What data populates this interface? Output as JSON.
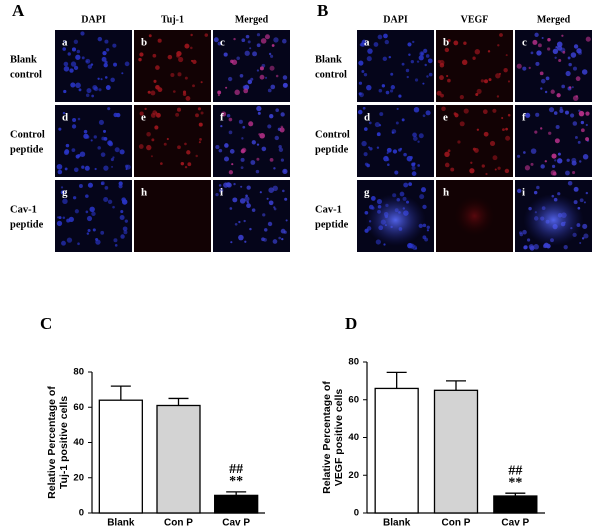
{
  "panels": [
    {
      "label": "A",
      "columns": [
        "DAPI",
        "Tuj-1",
        "Merged"
      ],
      "rows": [
        [
          "Blank",
          "control"
        ],
        [
          "Control",
          "peptide"
        ],
        [
          "Cav-1",
          "peptide"
        ]
      ],
      "cells": [
        "a",
        "b",
        "c",
        "d",
        "e",
        "f",
        "g",
        "h",
        "i"
      ]
    },
    {
      "label": "B",
      "columns": [
        "DAPI",
        "VEGF",
        "Merged"
      ],
      "rows": [
        [
          "Blank",
          "control"
        ],
        [
          "Control",
          "peptide"
        ],
        [
          "Cav-1",
          "peptide"
        ]
      ],
      "cells": [
        "a",
        "b",
        "c",
        "d",
        "e",
        "f",
        "g",
        "h",
        "i"
      ]
    }
  ],
  "chart_data": [
    {
      "type": "bar",
      "title": "C",
      "y_label": [
        "Relative Percentage of",
        "Tuj-1 positive cells"
      ],
      "categories": [
        "Blank",
        "Con P",
        "Cav P"
      ],
      "values": [
        64,
        61,
        10
      ],
      "errors": [
        8,
        4,
        2
      ],
      "colors": [
        "#ffffff",
        "#d3d3d3",
        "#000000"
      ],
      "annotations": [
        "##",
        "**"
      ],
      "ylim": [
        0,
        80
      ],
      "yticks": [
        0,
        20,
        40,
        60,
        80
      ]
    },
    {
      "type": "bar",
      "title": "D",
      "y_label": [
        "Relative Percentage of",
        "VEGF positive cells"
      ],
      "categories": [
        "Blank",
        "Con P",
        "Cav P"
      ],
      "values": [
        66,
        65,
        9
      ],
      "errors": [
        8.5,
        5,
        1.5
      ],
      "colors": [
        "#ffffff",
        "#d3d3d3",
        "#000000"
      ],
      "annotations": [
        "##",
        "**"
      ],
      "ylim": [
        0,
        80
      ],
      "yticks": [
        0,
        20,
        40,
        60,
        80
      ]
    }
  ]
}
